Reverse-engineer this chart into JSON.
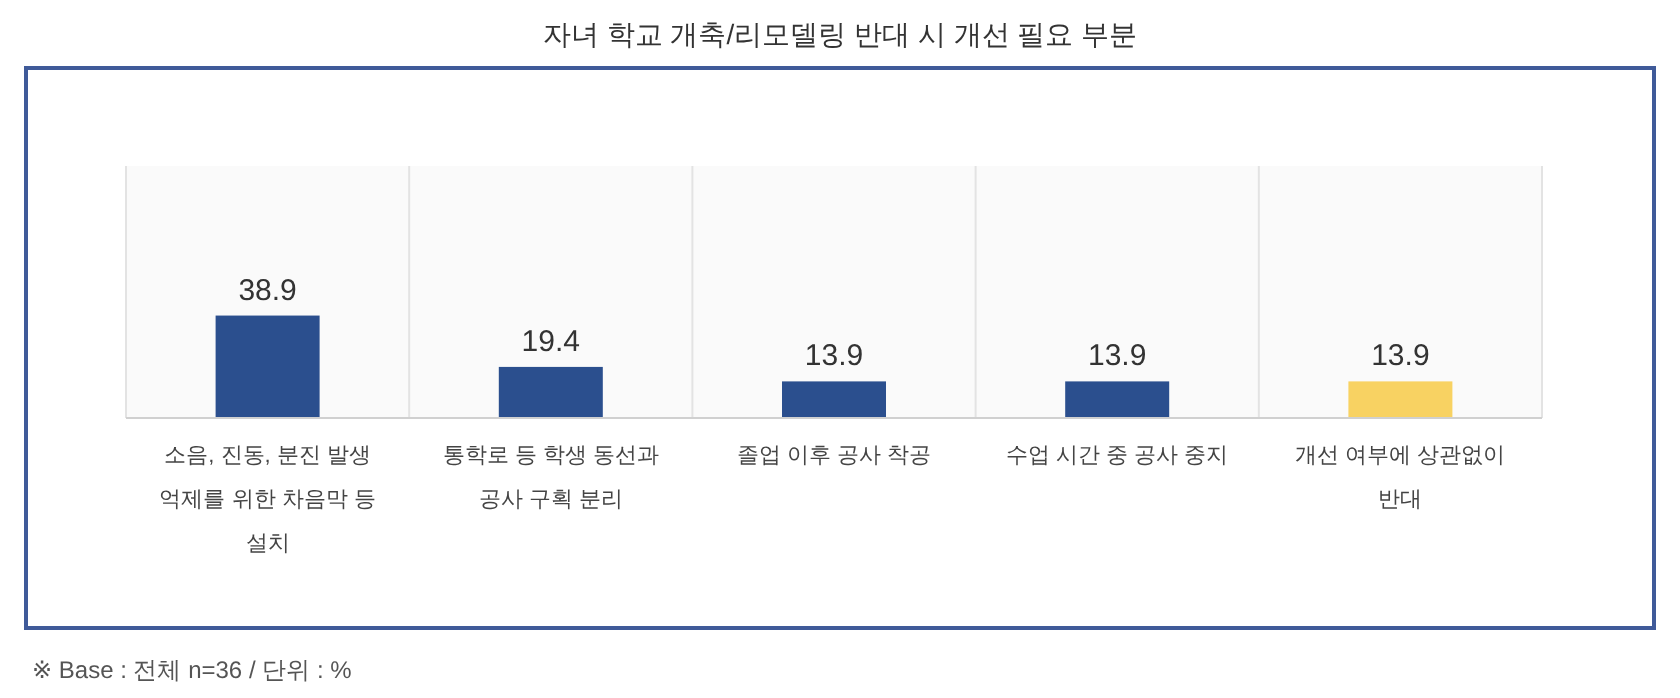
{
  "chart_data": {
    "type": "bar",
    "title": "자녀 학교 개축/리모델링 반대 시 개선 필요 부분",
    "categories": [
      "소음, 진동, 분진 발생 억제를 위한 차음막 등 설치",
      "통학로 등 학생 동선과 공사 구획 분리",
      "졸업 이후 공사 착공",
      "수업 시간 중 공사 중지",
      "개선 여부에 상관없이 반대"
    ],
    "values": [
      38.9,
      19.4,
      13.9,
      13.9,
      13.9
    ],
    "colors": [
      "#2b4f8e",
      "#2b4f8e",
      "#2b4f8e",
      "#2b4f8e",
      "#f8d262"
    ],
    "data_labels": true,
    "grid": "x",
    "annotations": [
      "※ Base : 전체 n=36 / 단위 : %"
    ]
  }
}
